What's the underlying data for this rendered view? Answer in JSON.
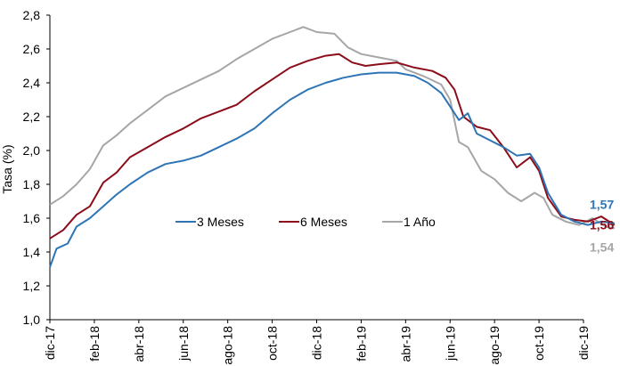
{
  "chart_data": {
    "type": "line",
    "ylabel": "Tasa (%)",
    "ylim": [
      1.0,
      2.8
    ],
    "yticks": [
      "1,0",
      "1,2",
      "1,4",
      "1,6",
      "1,8",
      "2,0",
      "2,2",
      "2,4",
      "2,6",
      "2,8"
    ],
    "xticks": [
      "dic-17",
      "feb-18",
      "abr-18",
      "jun-18",
      "ago-18",
      "oct-18",
      "dic-18",
      "feb-19",
      "abr-19",
      "jun-19",
      "ago-19",
      "oct-19",
      "dic-19"
    ],
    "grid": false,
    "legend_position": "center-right",
    "series": [
      {
        "name": "3 Meses",
        "color": "#2e75b6",
        "end_label": "1,57",
        "values": [
          [
            0,
            1.31
          ],
          [
            0.15,
            1.42
          ],
          [
            0.4,
            1.45
          ],
          [
            0.6,
            1.55
          ],
          [
            0.9,
            1.6
          ],
          [
            1.2,
            1.67
          ],
          [
            1.5,
            1.74
          ],
          [
            1.8,
            1.8
          ],
          [
            2.2,
            1.87
          ],
          [
            2.6,
            1.92
          ],
          [
            3.0,
            1.94
          ],
          [
            3.4,
            1.97
          ],
          [
            3.8,
            2.02
          ],
          [
            4.2,
            2.07
          ],
          [
            4.6,
            2.13
          ],
          [
            5.0,
            2.22
          ],
          [
            5.4,
            2.3
          ],
          [
            5.8,
            2.36
          ],
          [
            6.2,
            2.4
          ],
          [
            6.6,
            2.43
          ],
          [
            7.0,
            2.45
          ],
          [
            7.4,
            2.46
          ],
          [
            7.8,
            2.46
          ],
          [
            8.2,
            2.44
          ],
          [
            8.5,
            2.4
          ],
          [
            8.8,
            2.34
          ],
          [
            9.0,
            2.26
          ],
          [
            9.2,
            2.18
          ],
          [
            9.4,
            2.22
          ],
          [
            9.6,
            2.1
          ],
          [
            9.9,
            2.06
          ],
          [
            10.2,
            2.02
          ],
          [
            10.5,
            1.97
          ],
          [
            10.8,
            1.98
          ],
          [
            11.0,
            1.9
          ],
          [
            11.2,
            1.75
          ],
          [
            11.5,
            1.62
          ],
          [
            11.8,
            1.58
          ],
          [
            12.1,
            1.56
          ],
          [
            12.4,
            1.58
          ],
          [
            12.7,
            1.57
          ]
        ]
      },
      {
        "name": "6 Meses",
        "color": "#8b0d1a",
        "end_label": "1,56",
        "values": [
          [
            0,
            1.48
          ],
          [
            0.3,
            1.53
          ],
          [
            0.6,
            1.62
          ],
          [
            0.9,
            1.67
          ],
          [
            1.2,
            1.81
          ],
          [
            1.5,
            1.87
          ],
          [
            1.8,
            1.96
          ],
          [
            2.2,
            2.02
          ],
          [
            2.6,
            2.08
          ],
          [
            3.0,
            2.13
          ],
          [
            3.4,
            2.19
          ],
          [
            3.8,
            2.23
          ],
          [
            4.2,
            2.27
          ],
          [
            4.6,
            2.35
          ],
          [
            5.0,
            2.42
          ],
          [
            5.4,
            2.49
          ],
          [
            5.8,
            2.53
          ],
          [
            6.2,
            2.56
          ],
          [
            6.5,
            2.57
          ],
          [
            6.8,
            2.52
          ],
          [
            7.1,
            2.5
          ],
          [
            7.4,
            2.51
          ],
          [
            7.8,
            2.52
          ],
          [
            8.2,
            2.49
          ],
          [
            8.6,
            2.47
          ],
          [
            8.9,
            2.43
          ],
          [
            9.1,
            2.36
          ],
          [
            9.3,
            2.2
          ],
          [
            9.6,
            2.14
          ],
          [
            9.9,
            2.12
          ],
          [
            10.2,
            2.02
          ],
          [
            10.5,
            1.9
          ],
          [
            10.8,
            1.96
          ],
          [
            11.0,
            1.88
          ],
          [
            11.2,
            1.72
          ],
          [
            11.5,
            1.61
          ],
          [
            11.8,
            1.59
          ],
          [
            12.1,
            1.58
          ],
          [
            12.4,
            1.61
          ],
          [
            12.7,
            1.56
          ]
        ]
      },
      {
        "name": "1 Año",
        "color": "#a6a6a6",
        "end_label": "1,54",
        "values": [
          [
            0,
            1.68
          ],
          [
            0.3,
            1.73
          ],
          [
            0.6,
            1.8
          ],
          [
            0.9,
            1.89
          ],
          [
            1.2,
            2.03
          ],
          [
            1.5,
            2.09
          ],
          [
            1.8,
            2.16
          ],
          [
            2.2,
            2.24
          ],
          [
            2.6,
            2.32
          ],
          [
            3.0,
            2.37
          ],
          [
            3.4,
            2.42
          ],
          [
            3.8,
            2.47
          ],
          [
            4.2,
            2.54
          ],
          [
            4.6,
            2.6
          ],
          [
            5.0,
            2.66
          ],
          [
            5.4,
            2.7
          ],
          [
            5.7,
            2.73
          ],
          [
            6.0,
            2.7
          ],
          [
            6.4,
            2.69
          ],
          [
            6.7,
            2.61
          ],
          [
            7.0,
            2.57
          ],
          [
            7.4,
            2.55
          ],
          [
            7.8,
            2.53
          ],
          [
            8.0,
            2.48
          ],
          [
            8.4,
            2.44
          ],
          [
            8.8,
            2.39
          ],
          [
            9.0,
            2.3
          ],
          [
            9.2,
            2.05
          ],
          [
            9.4,
            2.02
          ],
          [
            9.7,
            1.88
          ],
          [
            10.0,
            1.83
          ],
          [
            10.3,
            1.75
          ],
          [
            10.6,
            1.7
          ],
          [
            10.9,
            1.75
          ],
          [
            11.1,
            1.72
          ],
          [
            11.3,
            1.62
          ],
          [
            11.6,
            1.58
          ],
          [
            11.9,
            1.56
          ],
          [
            12.2,
            1.6
          ],
          [
            12.5,
            1.55
          ],
          [
            12.7,
            1.54
          ]
        ]
      }
    ]
  }
}
